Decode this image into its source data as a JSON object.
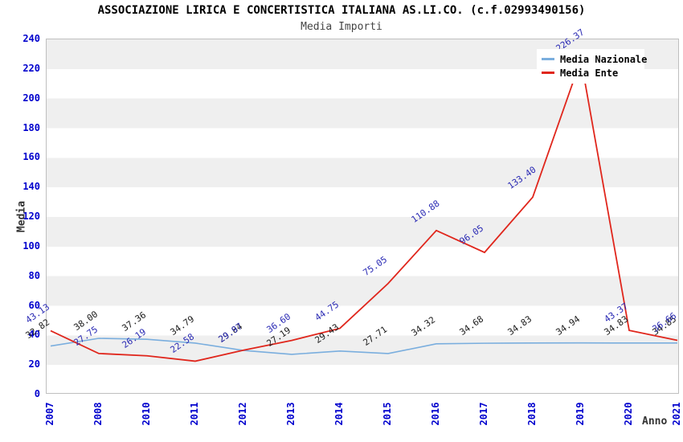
{
  "title": "ASSOCIAZIONE LIRICA E CONCERTISTICA ITALIANA AS.LI.CO. (c.f.02993490156)",
  "subtitle": "Media Importi",
  "colors": {
    "nazionale_line": "#7aaede",
    "ente_line": "#e0261c",
    "nazionale_label": "#1a1a1a",
    "ente_label": "#2a2ab4",
    "axis_ticks": "#0000cd",
    "band_gray": "#efefef",
    "plot_border": "#bfbfbf"
  },
  "chart_data": {
    "type": "line",
    "title": "ASSOCIAZIONE LIRICA E CONCERTISTICA ITALIANA AS.LI.CO. (c.f.02993490156)",
    "subtitle": "Media Importi",
    "xlabel": "Anno",
    "ylabel": "Media",
    "ylim": [
      0,
      240
    ],
    "ytick_step": 20,
    "grid": "alternating-horizontal-bands",
    "legend_position": "top-right",
    "categories": [
      "2007",
      "2008",
      "2010",
      "2011",
      "2012",
      "2013",
      "2014",
      "2015",
      "2016",
      "2017",
      "2018",
      "2019",
      "2020",
      "2021"
    ],
    "series": [
      {
        "name": "Media Nazionale",
        "color": "#7aaede",
        "label_color": "#1a1a1a",
        "values": [
          32.82,
          38.0,
          37.36,
          34.79,
          29.84,
          27.19,
          29.43,
          27.71,
          34.32,
          34.68,
          34.83,
          34.94,
          34.83,
          34.85
        ],
        "labels": [
          "32.82",
          "38.00",
          "37.36",
          "34.79",
          "29.84",
          "27.19",
          "29.43",
          "27.71",
          "34.32",
          "34.68",
          "34.83",
          "34.94",
          "34.83",
          "34.85"
        ]
      },
      {
        "name": "Media Ente",
        "color": "#e0261c",
        "label_color": "#2a2ab4",
        "values": [
          43.13,
          27.75,
          26.19,
          22.58,
          29.97,
          36.6,
          44.75,
          75.05,
          110.88,
          96.05,
          133.4,
          226.37,
          43.37,
          36.66
        ],
        "labels": [
          "43.13",
          "27.75",
          "26.19",
          "22.58",
          "29.97",
          "36.60",
          "44.75",
          "75.05",
          "110.88",
          "96.05",
          "133.40",
          "226.37",
          "43.37",
          "36.66"
        ]
      }
    ]
  }
}
